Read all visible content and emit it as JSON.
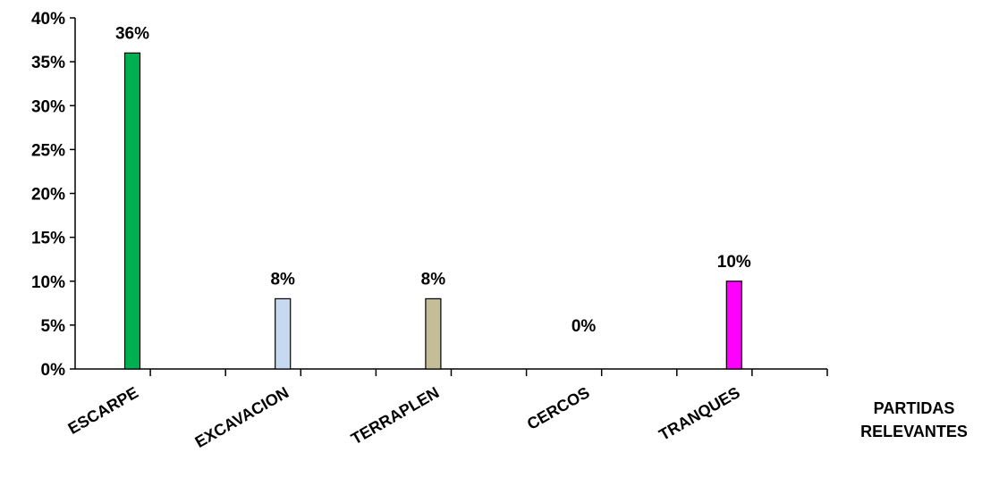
{
  "chart_data": {
    "type": "bar",
    "title": "",
    "xlabel_lines": [
      "PARTIDAS",
      "RELEVANTES"
    ],
    "ylabel": "",
    "categories": [
      "ESCARPE",
      "EXCAVACION",
      "TERRAPLEN",
      "CERCOS",
      "TRANQUES"
    ],
    "values": [
      36,
      8,
      8,
      0,
      10
    ],
    "data_labels": [
      "36%",
      "8%",
      "8%",
      "0%",
      "10%"
    ],
    "colors": [
      "#00b050",
      "#c6d9f1",
      "#c4bd97",
      "#ffffff",
      "#ff00ff"
    ],
    "ylim": [
      0,
      40
    ],
    "yticks": [
      0,
      5,
      10,
      15,
      20,
      25,
      30,
      35,
      40
    ],
    "ytick_labels": [
      "0%",
      "5%",
      "10%",
      "15%",
      "20%",
      "25%",
      "30%",
      "35%",
      "40%"
    ],
    "grid": false,
    "legend": "none"
  }
}
